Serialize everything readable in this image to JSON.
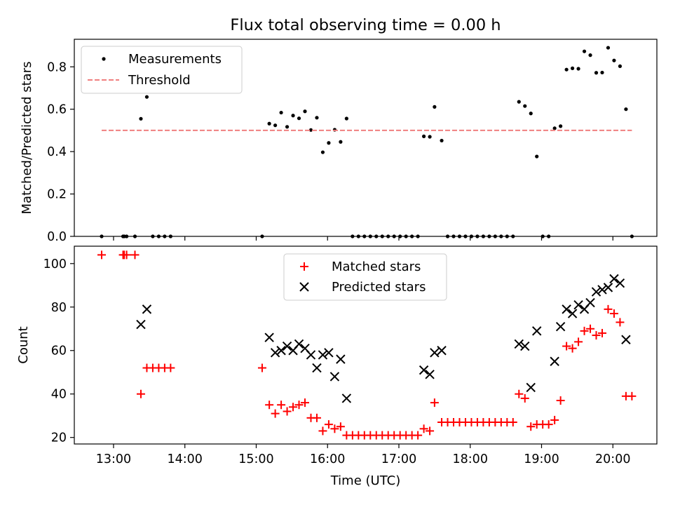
{
  "figure": {
    "title": "Flux total observing time = 0.00 h",
    "x_axis_label": "Time (UTC)"
  },
  "chart_data": [
    {
      "type": "scatter",
      "panel": "top",
      "ylabel": "Matched/Predicted stars",
      "xlim": [
        "12:27",
        "20:37"
      ],
      "ylim": [
        0,
        0.93
      ],
      "x_ticks": [
        "13:00",
        "14:00",
        "15:00",
        "16:00",
        "17:00",
        "18:00",
        "19:00",
        "20:00"
      ],
      "y_ticks": [
        "0.0",
        "0.2",
        "0.4",
        "0.6",
        "0.8"
      ],
      "legend_position": "top-left",
      "colors": {
        "measurements": "#000000",
        "threshold": "#f08080"
      },
      "series": [
        {
          "name": "Measurements",
          "style": "dot",
          "points": [
            [
              "12:50",
              0.0
            ],
            [
              "13:08",
              0.0
            ],
            [
              "13:09",
              0.0
            ],
            [
              "13:11",
              0.0
            ],
            [
              "13:18",
              0.0
            ],
            [
              "13:23",
              0.555
            ],
            [
              "13:28",
              0.658
            ],
            [
              "13:33",
              0.0
            ],
            [
              "13:38",
              0.0
            ],
            [
              "13:43",
              0.0
            ],
            [
              "13:48",
              0.0
            ],
            [
              "15:05",
              0.0
            ],
            [
              "15:11",
              0.532
            ],
            [
              "15:16",
              0.524
            ],
            [
              "15:21",
              0.584
            ],
            [
              "15:26",
              0.517
            ],
            [
              "15:31",
              0.57
            ],
            [
              "15:36",
              0.557
            ],
            [
              "15:41",
              0.59
            ],
            [
              "15:46",
              0.502
            ],
            [
              "15:51",
              0.56
            ],
            [
              "15:56",
              0.397
            ],
            [
              "16:01",
              0.441
            ],
            [
              "16:06",
              0.503
            ],
            [
              "16:11",
              0.446
            ],
            [
              "16:16",
              0.556
            ],
            [
              "16:21",
              0.0
            ],
            [
              "16:26",
              0.0
            ],
            [
              "16:31",
              0.0
            ],
            [
              "16:36",
              0.0
            ],
            [
              "16:41",
              0.0
            ],
            [
              "16:46",
              0.0
            ],
            [
              "16:51",
              0.0
            ],
            [
              "16:56",
              0.0
            ],
            [
              "17:01",
              0.0
            ],
            [
              "17:06",
              0.0
            ],
            [
              "17:11",
              0.0
            ],
            [
              "17:16",
              0.0
            ],
            [
              "17:21",
              0.472
            ],
            [
              "17:26",
              0.47
            ],
            [
              "17:30",
              0.611
            ],
            [
              "17:36",
              0.452
            ],
            [
              "17:41",
              0.0
            ],
            [
              "17:46",
              0.0
            ],
            [
              "17:51",
              0.0
            ],
            [
              "17:56",
              0.0
            ],
            [
              "18:01",
              0.0
            ],
            [
              "18:06",
              0.0
            ],
            [
              "18:11",
              0.0
            ],
            [
              "18:16",
              0.0
            ],
            [
              "18:21",
              0.0
            ],
            [
              "18:26",
              0.0
            ],
            [
              "18:31",
              0.0
            ],
            [
              "18:36",
              0.0
            ],
            [
              "18:41",
              0.635
            ],
            [
              "18:46",
              0.615
            ],
            [
              "18:51",
              0.58
            ],
            [
              "18:56",
              0.377
            ],
            [
              "19:01",
              0.0
            ],
            [
              "19:06",
              0.0
            ],
            [
              "19:11",
              0.51
            ],
            [
              "19:16",
              0.52
            ],
            [
              "19:21",
              0.787
            ],
            [
              "19:26",
              0.793
            ],
            [
              "19:31",
              0.791
            ],
            [
              "19:36",
              0.873
            ],
            [
              "19:41",
              0.855
            ],
            [
              "19:46",
              0.772
            ],
            [
              "19:51",
              0.773
            ],
            [
              "19:56",
              0.89
            ],
            [
              "20:01",
              0.83
            ],
            [
              "20:06",
              0.803
            ],
            [
              "20:11",
              0.6
            ],
            [
              "20:16",
              0.0
            ]
          ]
        },
        {
          "name": "Threshold",
          "style": "dashed-line",
          "points": [
            [
              "12:50",
              0.5
            ],
            [
              "20:16",
              0.5
            ]
          ]
        }
      ]
    },
    {
      "type": "scatter",
      "panel": "bottom",
      "xlabel": "Time (UTC)",
      "ylabel": "Count",
      "xlim": [
        "12:27",
        "20:37"
      ],
      "ylim": [
        17,
        108
      ],
      "x_ticks": [
        "13:00",
        "14:00",
        "15:00",
        "16:00",
        "17:00",
        "18:00",
        "19:00",
        "20:00"
      ],
      "y_ticks": [
        "20",
        "40",
        "60",
        "80",
        "100"
      ],
      "legend_position": "upper-center",
      "colors": {
        "matched": "#ff0000",
        "predicted": "#000000"
      },
      "series": [
        {
          "name": "Matched stars",
          "marker": "plus",
          "points": [
            [
              "12:50",
              104
            ],
            [
              "13:08",
              104
            ],
            [
              "13:09",
              104
            ],
            [
              "13:11",
              104
            ],
            [
              "13:18",
              104
            ],
            [
              "13:23",
              40
            ],
            [
              "13:28",
              52
            ],
            [
              "13:33",
              52
            ],
            [
              "13:38",
              52
            ],
            [
              "13:43",
              52
            ],
            [
              "13:48",
              52
            ],
            [
              "15:05",
              52
            ],
            [
              "15:11",
              35
            ],
            [
              "15:16",
              31
            ],
            [
              "15:21",
              35
            ],
            [
              "15:26",
              32
            ],
            [
              "15:31",
              34
            ],
            [
              "15:36",
              35
            ],
            [
              "15:41",
              36
            ],
            [
              "15:46",
              29
            ],
            [
              "15:51",
              29
            ],
            [
              "15:56",
              23
            ],
            [
              "16:01",
              26
            ],
            [
              "16:06",
              24
            ],
            [
              "16:11",
              25
            ],
            [
              "16:16",
              21
            ],
            [
              "16:21",
              21
            ],
            [
              "16:26",
              21
            ],
            [
              "16:31",
              21
            ],
            [
              "16:36",
              21
            ],
            [
              "16:41",
              21
            ],
            [
              "16:46",
              21
            ],
            [
              "16:51",
              21
            ],
            [
              "16:56",
              21
            ],
            [
              "17:01",
              21
            ],
            [
              "17:06",
              21
            ],
            [
              "17:11",
              21
            ],
            [
              "17:16",
              21
            ],
            [
              "17:21",
              24
            ],
            [
              "17:26",
              23
            ],
            [
              "17:30",
              36
            ],
            [
              "17:36",
              27
            ],
            [
              "17:41",
              27
            ],
            [
              "17:46",
              27
            ],
            [
              "17:51",
              27
            ],
            [
              "17:56",
              27
            ],
            [
              "18:01",
              27
            ],
            [
              "18:06",
              27
            ],
            [
              "18:11",
              27
            ],
            [
              "18:16",
              27
            ],
            [
              "18:21",
              27
            ],
            [
              "18:26",
              27
            ],
            [
              "18:31",
              27
            ],
            [
              "18:36",
              27
            ],
            [
              "18:41",
              40
            ],
            [
              "18:46",
              38
            ],
            [
              "18:51",
              25
            ],
            [
              "18:56",
              26
            ],
            [
              "19:01",
              26
            ],
            [
              "19:06",
              26
            ],
            [
              "19:11",
              28
            ],
            [
              "19:16",
              37
            ],
            [
              "19:21",
              62
            ],
            [
              "19:26",
              61
            ],
            [
              "19:31",
              64
            ],
            [
              "19:36",
              69
            ],
            [
              "19:41",
              70
            ],
            [
              "19:46",
              67
            ],
            [
              "19:51",
              68
            ],
            [
              "19:56",
              79
            ],
            [
              "20:01",
              77
            ],
            [
              "20:06",
              73
            ],
            [
              "20:11",
              39
            ],
            [
              "20:16",
              39
            ]
          ]
        },
        {
          "name": "Predicted stars",
          "marker": "x",
          "points": [
            [
              "13:23",
              72
            ],
            [
              "13:28",
              79
            ],
            [
              "15:11",
              66
            ],
            [
              "15:16",
              59
            ],
            [
              "15:21",
              60
            ],
            [
              "15:26",
              62
            ],
            [
              "15:31",
              60
            ],
            [
              "15:36",
              63
            ],
            [
              "15:41",
              61
            ],
            [
              "15:46",
              58
            ],
            [
              "15:51",
              52
            ],
            [
              "15:56",
              58
            ],
            [
              "16:01",
              59
            ],
            [
              "16:06",
              48
            ],
            [
              "16:11",
              56
            ],
            [
              "16:16",
              38
            ],
            [
              "17:21",
              51
            ],
            [
              "17:26",
              49
            ],
            [
              "17:30",
              59
            ],
            [
              "17:36",
              60
            ],
            [
              "18:41",
              63
            ],
            [
              "18:46",
              62
            ],
            [
              "18:51",
              43
            ],
            [
              "18:56",
              69
            ],
            [
              "19:11",
              55
            ],
            [
              "19:16",
              71
            ],
            [
              "19:21",
              79
            ],
            [
              "19:26",
              77
            ],
            [
              "19:31",
              81
            ],
            [
              "19:36",
              79
            ],
            [
              "19:41",
              82
            ],
            [
              "19:46",
              87
            ],
            [
              "19:51",
              88
            ],
            [
              "19:56",
              89
            ],
            [
              "20:01",
              93
            ],
            [
              "20:06",
              91
            ],
            [
              "20:11",
              65
            ]
          ]
        }
      ]
    }
  ]
}
